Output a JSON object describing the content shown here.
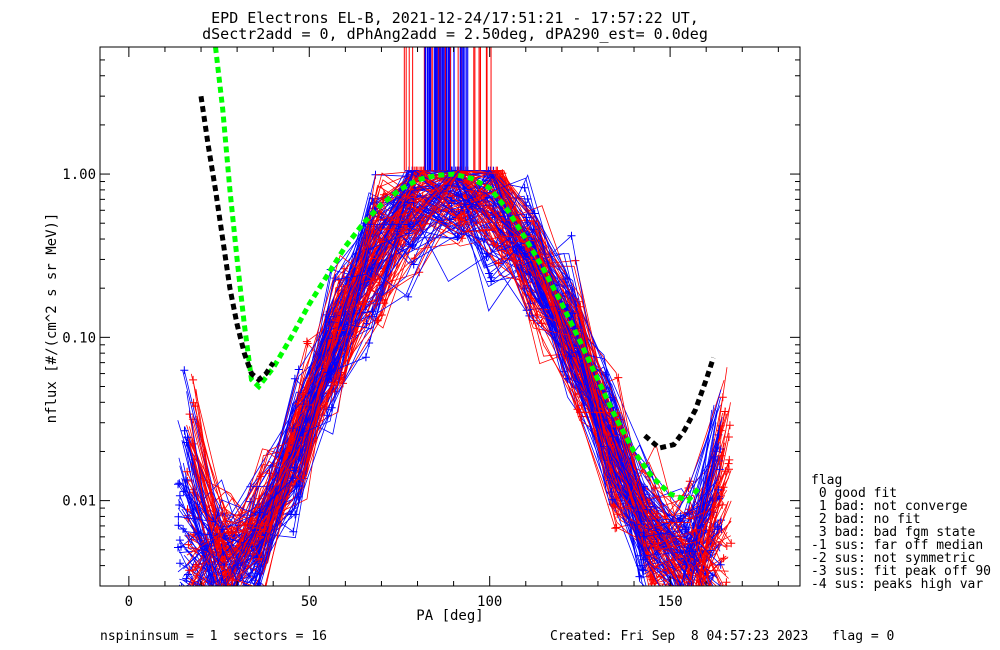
{
  "chart_data": {
    "type": "line",
    "title": "EPD Electrons EL-B, 2021-12-24/17:51:21 - 17:57:22 UT,",
    "subtitle": "dSectr2add = 0, dPhAng2add = 2.50deg, dPA290_est=    0.0deg",
    "xlabel": "PA [deg]",
    "ylabel": "nflux [#/(cm^2 s sr MeV)]",
    "xlim": [
      -8,
      186
    ],
    "ylim": [
      0.003,
      6
    ],
    "yscale": "log",
    "x_ticks": [
      0,
      50,
      100,
      150
    ],
    "x_tick_labels": [
      "0",
      "50",
      "100",
      "150"
    ],
    "y_ticks": [
      0.01,
      0.1,
      1.0
    ],
    "y_tick_labels": [
      "0.01",
      "0.10",
      "1.00"
    ],
    "colors": {
      "red": "#ff0000",
      "blue": "#0000ff",
      "green": "#00ff00",
      "black": "#000000"
    },
    "series": [
      {
        "color": "green",
        "style": "dashed",
        "x": [
          24,
          26,
          28,
          30,
          32,
          34,
          36,
          40,
          45,
          50,
          55,
          60,
          65,
          70,
          75,
          80,
          85,
          90,
          95,
          100,
          105,
          110,
          115,
          120,
          125,
          130,
          135,
          140,
          145,
          150,
          155,
          158
        ],
        "y": [
          6,
          2.5,
          0.8,
          0.3,
          0.12,
          0.055,
          0.05,
          0.065,
          0.1,
          0.16,
          0.24,
          0.36,
          0.5,
          0.65,
          0.8,
          0.92,
          0.98,
          1.0,
          0.94,
          0.82,
          0.6,
          0.4,
          0.26,
          0.16,
          0.095,
          0.055,
          0.032,
          0.02,
          0.014,
          0.011,
          0.01,
          0.012
        ]
      },
      {
        "color": "black",
        "style": "dashed",
        "x": [
          20,
          22,
          24,
          26,
          28,
          30,
          32,
          34,
          36,
          38,
          40
        ],
        "y": [
          3.0,
          1.5,
          0.8,
          0.4,
          0.2,
          0.12,
          0.08,
          0.06,
          0.055,
          0.06,
          0.07
        ]
      },
      {
        "color": "black",
        "style": "dashed",
        "x": [
          143,
          147,
          151,
          154,
          157,
          160,
          162
        ],
        "y": [
          0.025,
          0.021,
          0.022,
          0.027,
          0.036,
          0.055,
          0.075
        ]
      }
    ]
  },
  "legend": {
    "title": "flag",
    "items": [
      " 0 good fit",
      " 1 bad: not converge",
      " 2 bad: no fit",
      " 3 bad: bad fgm state",
      "-1 sus: far off median",
      "-2 sus: not symmetric",
      "-3 sus: fit peak off 90",
      "-4 sus: peaks high var"
    ]
  },
  "footer": {
    "left": "nspininsum =  1  sectors = 16",
    "right": "Created: Fri Sep  8 04:57:23 2023   flag = 0"
  }
}
